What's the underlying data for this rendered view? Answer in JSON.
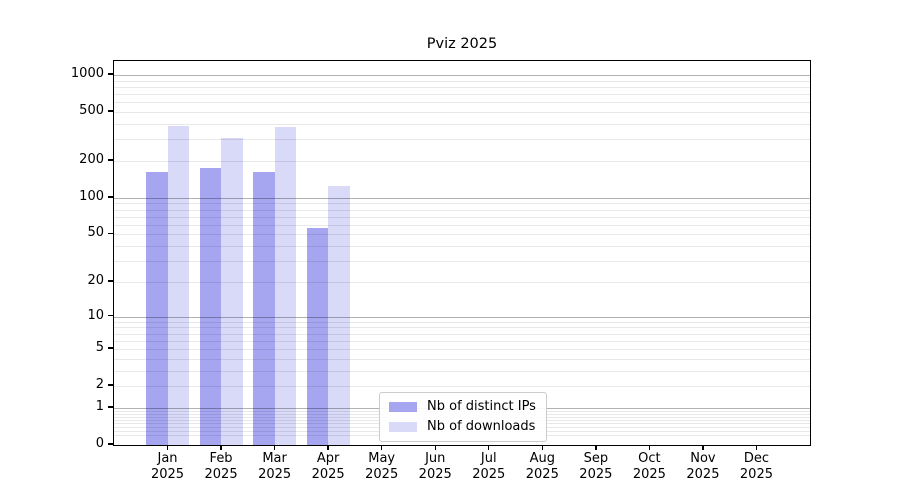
{
  "chart_data": {
    "type": "bar",
    "title": "Pviz 2025",
    "y_scale": "log1p",
    "ylim": [
      0,
      1300
    ],
    "grid": true,
    "legend_position": "lower center",
    "categories": [
      "Jan 2025",
      "Feb 2025",
      "Mar 2025",
      "Apr 2025",
      "May 2025",
      "Jun 2025",
      "Jul 2025",
      "Aug 2025",
      "Sep 2025",
      "Oct 2025",
      "Nov 2025",
      "Dec 2025"
    ],
    "x_tick_labels": [
      [
        "Jan",
        "2025"
      ],
      [
        "Feb",
        "2025"
      ],
      [
        "Mar",
        "2025"
      ],
      [
        "Apr",
        "2025"
      ],
      [
        "May",
        "2025"
      ],
      [
        "Jun",
        "2025"
      ],
      [
        "Jul",
        "2025"
      ],
      [
        "Aug",
        "2025"
      ],
      [
        "Sep",
        "2025"
      ],
      [
        "Oct",
        "2025"
      ],
      [
        "Nov",
        "2025"
      ],
      [
        "Dec",
        "2025"
      ]
    ],
    "y_ticks": [
      0,
      1,
      2,
      5,
      10,
      20,
      50,
      100,
      200,
      500,
      1000
    ],
    "series": [
      {
        "name": "Nb of distinct IPs",
        "color": "#a5a5f0",
        "values": [
          162,
          175,
          163,
          56,
          null,
          null,
          null,
          null,
          null,
          null,
          null,
          null
        ]
      },
      {
        "name": "Nb of downloads",
        "color": "#d9d9f8",
        "values": [
          385,
          308,
          378,
          125,
          null,
          null,
          null,
          null,
          null,
          null,
          null,
          null
        ]
      }
    ]
  },
  "colors": {
    "grid_major": "#b0b0b0",
    "grid_minor": "#e8e8e8",
    "spine": "#000000",
    "legend_border": "#cccccc",
    "background": "#ffffff"
  }
}
